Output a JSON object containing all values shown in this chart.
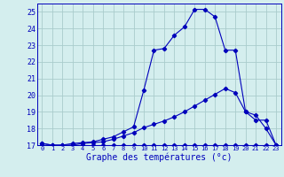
{
  "xlabel": "Graphe des températures (°c)",
  "background_color": "#d4eeee",
  "grid_color": "#aacccc",
  "line_color": "#0000bb",
  "spine_color": "#0000bb",
  "xlim": [
    -0.5,
    23.5
  ],
  "ylim": [
    17,
    25.5
  ],
  "yticks": [
    17,
    18,
    19,
    20,
    21,
    22,
    23,
    24,
    25
  ],
  "xticks": [
    0,
    1,
    2,
    3,
    4,
    5,
    6,
    7,
    8,
    9,
    10,
    11,
    12,
    13,
    14,
    15,
    16,
    17,
    18,
    19,
    20,
    21,
    22,
    23
  ],
  "s1_x": [
    0,
    1,
    2,
    3,
    4,
    5,
    6,
    7,
    8,
    9,
    10,
    11,
    12,
    13,
    14,
    15,
    16,
    17,
    18,
    19,
    20,
    21,
    22,
    23
  ],
  "s1_y": [
    17.0,
    17.0,
    17.0,
    17.0,
    17.0,
    17.0,
    17.0,
    17.0,
    17.0,
    17.0,
    17.0,
    17.0,
    17.0,
    17.0,
    17.0,
    17.0,
    17.0,
    17.0,
    17.0,
    17.0,
    17.0,
    17.0,
    17.0,
    17.0
  ],
  "s2_x": [
    0,
    1,
    2,
    3,
    4,
    5,
    6,
    7,
    8,
    9,
    10,
    11,
    12,
    13,
    14,
    15,
    16,
    17,
    18,
    19,
    20,
    21,
    22,
    23
  ],
  "s2_y": [
    17.1,
    17.0,
    17.0,
    17.0,
    17.1,
    17.15,
    17.2,
    17.35,
    17.55,
    17.75,
    18.05,
    18.25,
    18.45,
    18.7,
    19.0,
    19.35,
    19.7,
    20.05,
    20.4,
    20.15,
    19.0,
    18.8,
    18.0,
    17.0
  ],
  "s3_x": [
    0,
    1,
    2,
    3,
    4,
    5,
    6,
    7,
    8,
    9,
    10,
    11,
    12,
    13,
    14,
    15,
    16,
    17,
    18,
    19,
    20,
    21,
    22,
    23
  ],
  "s3_y": [
    17.1,
    17.0,
    17.0,
    17.1,
    17.15,
    17.2,
    17.35,
    17.5,
    17.8,
    18.1,
    20.3,
    22.7,
    22.8,
    23.6,
    24.1,
    25.15,
    25.15,
    24.7,
    22.7,
    22.7,
    19.0,
    18.5,
    18.5,
    17.0
  ]
}
